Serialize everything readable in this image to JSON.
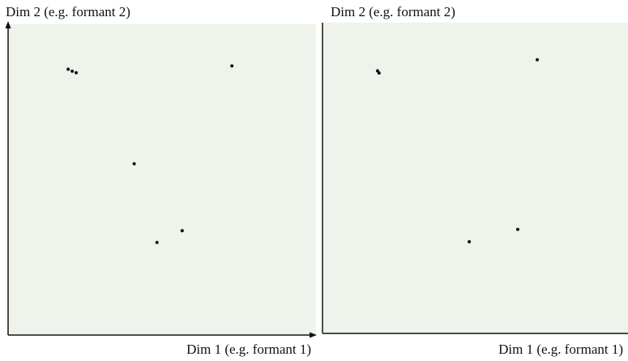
{
  "colors": {
    "background": "#ffffff",
    "plot_area": "#eef3ec",
    "axis": "#111111",
    "point": "#111111"
  },
  "chart_data": [
    {
      "type": "scatter",
      "title": "",
      "xlabel": "Dim 1 (e.g. formant 1)",
      "ylabel": "Dim 2 (e.g. formant 2)",
      "xlim": [
        0,
        100
      ],
      "ylim": [
        0,
        100
      ],
      "grid": false,
      "series": [
        {
          "points": [
            {
              "x": 19.3,
              "y": 85.5
            },
            {
              "x": 20.6,
              "y": 84.9
            },
            {
              "x": 21.9,
              "y": 84.4
            },
            {
              "x": 72.6,
              "y": 86.6
            },
            {
              "x": 40.8,
              "y": 55.0
            },
            {
              "x": 56.4,
              "y": 33.4
            },
            {
              "x": 48.2,
              "y": 29.6
            }
          ]
        }
      ]
    },
    {
      "type": "scatter",
      "title": "",
      "xlabel": "Dim 1 (e.g. formant 1)",
      "ylabel": "Dim 2 (e.g. formant 2)",
      "xlim": [
        0,
        100
      ],
      "ylim": [
        0,
        100
      ],
      "grid": false,
      "series": [
        {
          "points": [
            {
              "x": 17.8,
              "y": 84.5
            },
            {
              "x": 18.3,
              "y": 83.8
            },
            {
              "x": 70.2,
              "y": 88.1
            },
            {
              "x": 63.8,
              "y": 33.5
            },
            {
              "x": 47.9,
              "y": 29.5
            }
          ]
        }
      ]
    }
  ]
}
